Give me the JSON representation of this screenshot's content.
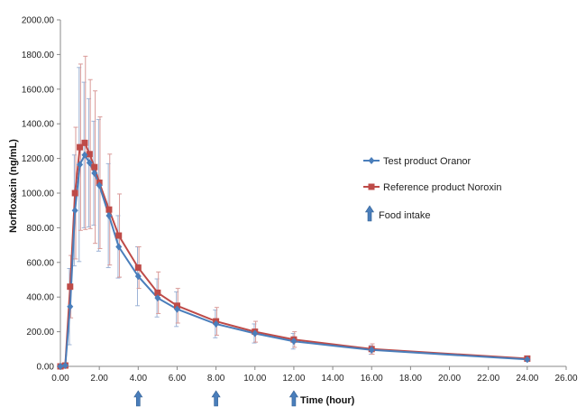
{
  "chart_data": {
    "type": "line",
    "title": "",
    "xlabel": "Time (hour)",
    "ylabel": "Norfloxacin (ng/mL)",
    "xlim": [
      0,
      26
    ],
    "ylim": [
      0,
      2000
    ],
    "x_ticks": [
      0,
      2,
      4,
      6,
      8,
      10,
      12,
      14,
      16,
      18,
      20,
      22,
      24,
      26
    ],
    "x_tick_labels": [
      "0.00",
      "2.00",
      "4.00",
      "6.00",
      "8.00",
      "10.00",
      "12.00",
      "14.00",
      "16.00",
      "18.00",
      "20.00",
      "22.00",
      "24.00",
      "26.00"
    ],
    "y_ticks": [
      0,
      200,
      400,
      600,
      800,
      1000,
      1200,
      1400,
      1600,
      1800,
      2000
    ],
    "y_tick_labels": [
      "0.00",
      "200.00",
      "400.00",
      "600.00",
      "800.00",
      "1000.00",
      "1200.00",
      "1400.00",
      "1600.00",
      "1800.00",
      "2000.00"
    ],
    "grid": false,
    "legend_position": "right",
    "series": [
      {
        "name": "Test product Oranor",
        "color": "#4a7ebb",
        "marker": "diamond",
        "x": [
          0,
          0.25,
          0.5,
          0.75,
          1.0,
          1.25,
          1.5,
          1.75,
          2.0,
          2.5,
          3.0,
          4.0,
          5.0,
          6.0,
          8.0,
          10.0,
          12.0,
          16.0,
          24.0
        ],
        "y": [
          0,
          5,
          345,
          900,
          1165,
          1220,
          1175,
          1115,
          1045,
          870,
          690,
          520,
          395,
          330,
          245,
          190,
          145,
          95,
          40
        ],
        "error": [
          0,
          5,
          220,
          320,
          560,
          420,
          370,
          300,
          380,
          300,
          180,
          170,
          110,
          100,
          80,
          55,
          45,
          25,
          10
        ]
      },
      {
        "name": "Reference product Noroxin",
        "color": "#be4b48",
        "marker": "square",
        "x": [
          0,
          0.25,
          0.5,
          0.75,
          1.0,
          1.25,
          1.5,
          1.75,
          2.0,
          2.5,
          3.0,
          4.0,
          5.0,
          6.0,
          8.0,
          10.0,
          12.0,
          16.0,
          24.0
        ],
        "y": [
          0,
          5,
          460,
          1000,
          1265,
          1290,
          1225,
          1150,
          1060,
          905,
          755,
          570,
          425,
          350,
          260,
          200,
          155,
          100,
          45
        ],
        "error": [
          0,
          5,
          180,
          380,
          480,
          500,
          430,
          440,
          380,
          320,
          240,
          120,
          120,
          100,
          80,
          60,
          45,
          30,
          15
        ]
      }
    ],
    "legend": [
      {
        "label": "Test product Oranor",
        "color": "#4a7ebb",
        "marker": "diamond"
      },
      {
        "label": "Reference product Noroxin",
        "color": "#be4b48",
        "marker": "square"
      },
      {
        "label": "Food intake",
        "color": "#4a7ebb",
        "marker": "up-arrow"
      }
    ],
    "annotations": {
      "food_intake_times": [
        4,
        8,
        12
      ],
      "marker": "up-arrow",
      "color": "#4a7ebb"
    }
  }
}
